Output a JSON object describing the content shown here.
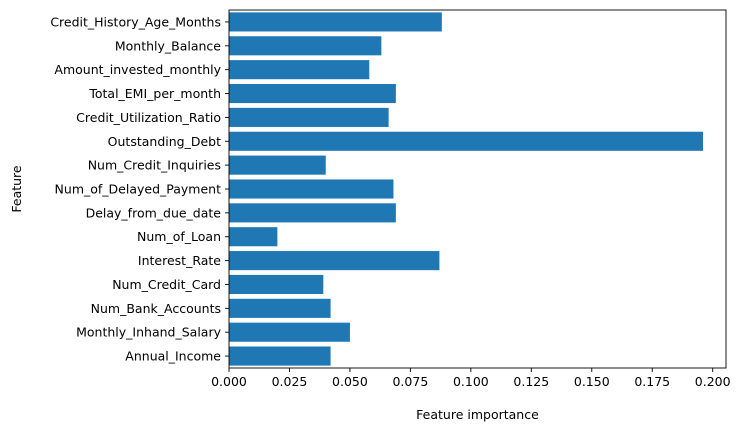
{
  "chart_data": {
    "type": "bar",
    "orientation": "horizontal",
    "title": "",
    "xlabel": "Feature importance",
    "ylabel": "Feature",
    "xlim": [
      0,
      0.2055
    ],
    "xticks": [
      "0.000",
      "0.025",
      "0.050",
      "0.075",
      "0.100",
      "0.125",
      "0.150",
      "0.175",
      "0.200"
    ],
    "xtick_values": [
      0,
      0.025,
      0.05,
      0.075,
      0.1,
      0.125,
      0.15,
      0.175,
      0.2
    ],
    "categories": [
      "Annual_Income",
      "Monthly_Inhand_Salary",
      "Num_Bank_Accounts",
      "Num_Credit_Card",
      "Interest_Rate",
      "Num_of_Loan",
      "Delay_from_due_date",
      "Num_of_Delayed_Payment",
      "Num_Credit_Inquiries",
      "Outstanding_Debt",
      "Credit_Utilization_Ratio",
      "Total_EMI_per_month",
      "Amount_invested_monthly",
      "Monthly_Balance",
      "Credit_History_Age_Months"
    ],
    "values": [
      0.042,
      0.05,
      0.042,
      0.039,
      0.087,
      0.02,
      0.069,
      0.068,
      0.04,
      0.196,
      0.066,
      0.069,
      0.058,
      0.063,
      0.088
    ],
    "bar_color": "#1f77b4",
    "grid": false,
    "legend": false
  }
}
